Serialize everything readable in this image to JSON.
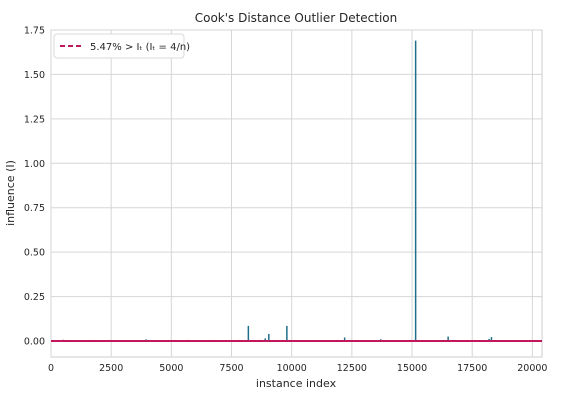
{
  "chart_data": {
    "type": "stem",
    "title": "Cook's Distance Outlier Detection",
    "xlabel": "instance index",
    "ylabel": "influence (I)",
    "xlim": [
      0,
      20400
    ],
    "ylim": [
      -0.09,
      1.75
    ],
    "xticks": [
      0,
      2500,
      5000,
      7500,
      10000,
      12500,
      15000,
      17500,
      20000
    ],
    "yticks": [
      0.0,
      0.25,
      0.5,
      0.75,
      1.0,
      1.25,
      1.5,
      1.75
    ],
    "xtick_labels": [
      "0",
      "2500",
      "5000",
      "7500",
      "10000",
      "12500",
      "15000",
      "17500",
      "20000"
    ],
    "ytick_labels": [
      "0.00",
      "0.25",
      "0.50",
      "0.75",
      "1.00",
      "1.25",
      "1.50",
      "1.75"
    ],
    "grid": true,
    "legend_position": "top-left",
    "threshold": {
      "value": 0.0002,
      "legend_label": "5.47% > Iₜ (Iₜ = 4/n)",
      "color": "#c2185b"
    },
    "series": [
      {
        "color": "#1f6f8b",
        "points": [
          [
            100,
            0.006
          ],
          [
            300,
            0.004
          ],
          [
            520,
            0.007
          ],
          [
            780,
            0.004
          ],
          [
            1000,
            0.005
          ],
          [
            1300,
            0.005
          ],
          [
            1650,
            0.006
          ],
          [
            2100,
            0.004
          ],
          [
            2500,
            0.005
          ],
          [
            3000,
            0.004
          ],
          [
            3500,
            0.005
          ],
          [
            3950,
            0.009
          ],
          [
            4300,
            0.005
          ],
          [
            4800,
            0.004
          ],
          [
            5200,
            0.005
          ],
          [
            5700,
            0.006
          ],
          [
            6100,
            0.004
          ],
          [
            6600,
            0.006
          ],
          [
            7000,
            0.004
          ],
          [
            7400,
            0.005
          ],
          [
            7800,
            0.006
          ],
          [
            8200,
            0.085
          ],
          [
            8700,
            0.006
          ],
          [
            8900,
            0.015
          ],
          [
            9050,
            0.04
          ],
          [
            9400,
            0.006
          ],
          [
            9800,
            0.085
          ],
          [
            10200,
            0.005
          ],
          [
            10600,
            0.004
          ],
          [
            11000,
            0.005
          ],
          [
            11500,
            0.004
          ],
          [
            11900,
            0.006
          ],
          [
            12200,
            0.02
          ],
          [
            12400,
            0.006
          ],
          [
            12800,
            0.004
          ],
          [
            13200,
            0.005
          ],
          [
            13700,
            0.01
          ],
          [
            14100,
            0.005
          ],
          [
            14500,
            0.004
          ],
          [
            14900,
            0.005
          ],
          [
            15150,
            1.69
          ],
          [
            15600,
            0.005
          ],
          [
            16000,
            0.004
          ],
          [
            16500,
            0.025
          ],
          [
            16900,
            0.005
          ],
          [
            17300,
            0.004
          ],
          [
            17700,
            0.005
          ],
          [
            18200,
            0.012
          ],
          [
            18300,
            0.022
          ],
          [
            18700,
            0.005
          ],
          [
            19100,
            0.004
          ],
          [
            19500,
            0.005
          ],
          [
            19900,
            0.004
          ],
          [
            20300,
            0.005
          ]
        ]
      }
    ]
  }
}
